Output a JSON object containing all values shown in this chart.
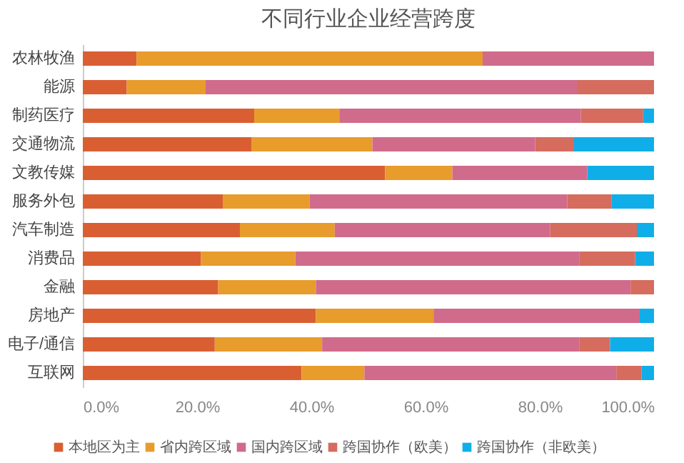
{
  "chart_data": {
    "type": "bar",
    "orientation": "horizontal",
    "stacked": true,
    "title": "不同行业企业经营跨度",
    "categories": [
      "农林牧渔",
      "能源",
      "制药医疗",
      "交通物流",
      "文教传媒",
      "服务外包",
      "汽车制造",
      "消费品",
      "金融",
      "房地产",
      "电子/通信",
      "互联网"
    ],
    "series": [
      {
        "name": "本地区为主",
        "color": "#d95f33",
        "values": [
          9.4,
          7.7,
          30.0,
          29.5,
          52.9,
          24.5,
          27.5,
          20.7,
          23.7,
          40.8,
          23.1,
          38.3
        ]
      },
      {
        "name": "省内跨区域",
        "color": "#e89c2c",
        "values": [
          60.6,
          13.8,
          14.9,
          21.2,
          11.8,
          15.2,
          16.6,
          16.5,
          17.1,
          20.6,
          18.8,
          11.0
        ]
      },
      {
        "name": "国内跨区域",
        "color": "#d06b8c",
        "values": [
          30.0,
          65.0,
          42.3,
          28.5,
          23.6,
          45.1,
          37.7,
          49.7,
          55.1,
          36.1,
          45.0,
          44.1
        ]
      },
      {
        "name": "跨国协作（欧美）",
        "color": "#d56c5e",
        "values": [
          0,
          13.5,
          10.9,
          6.8,
          0,
          7.8,
          15.2,
          9.8,
          4.1,
          0,
          5.4,
          4.4
        ]
      },
      {
        "name": "跨国协作（非欧美）",
        "color": "#10aee8",
        "values": [
          0,
          0,
          1.9,
          14.0,
          11.7,
          7.4,
          3.0,
          3.3,
          0,
          2.5,
          7.7,
          2.2
        ]
      }
    ],
    "xlim": [
      0,
      100
    ],
    "xticks": [
      {
        "value": 0,
        "label": "0.0%"
      },
      {
        "value": 20,
        "label": "20.0%"
      },
      {
        "value": 40,
        "label": "40.0%"
      },
      {
        "value": 60,
        "label": "60.0%"
      },
      {
        "value": 80,
        "label": "80.0%"
      },
      {
        "value": 100,
        "label": "100.0%"
      }
    ],
    "legend": "bottom"
  }
}
